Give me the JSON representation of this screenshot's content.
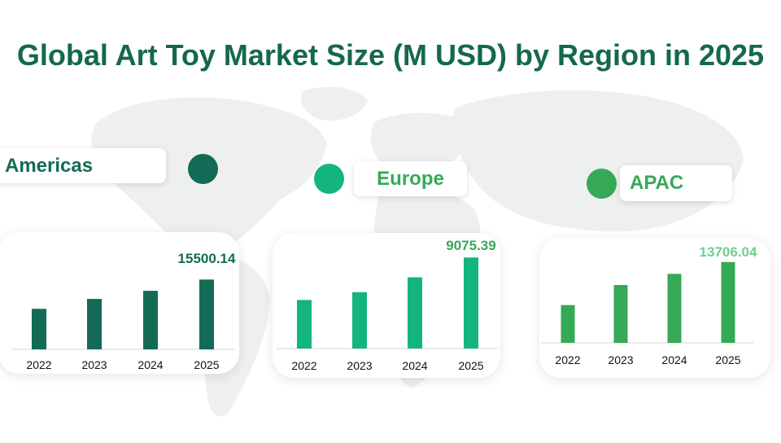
{
  "title": "Global Art Toy Market Size (M USD) by Region in 2025",
  "colors": {
    "title": "#14684e",
    "americas": "#136b55",
    "europe": "#14b47e",
    "apac": "#36a957",
    "apac_label": "#6fcf8e",
    "map": "#eef0ef"
  },
  "chart_data": [
    {
      "type": "bar",
      "region": "Americas",
      "categories": [
        "2022",
        "2023",
        "2024",
        "2025"
      ],
      "values": [
        9000,
        11200,
        13000,
        15500.14
      ],
      "data_labels": [
        "",
        "",
        "",
        "15500.14"
      ],
      "title": "",
      "xlabel": "",
      "ylabel": "",
      "ylim": [
        0,
        17000
      ],
      "grid": false
    },
    {
      "type": "bar",
      "region": "Europe",
      "categories": [
        "2022",
        "2023",
        "2024",
        "2025"
      ],
      "values": [
        4840,
        5620,
        7100,
        9075.39
      ],
      "data_labels": [
        "",
        "",
        "",
        "9075.39"
      ],
      "title": "",
      "xlabel": "",
      "ylabel": "",
      "ylim": [
        0,
        9500
      ],
      "grid": false
    },
    {
      "type": "bar",
      "region": "APAC",
      "categories": [
        "2022",
        "2023",
        "2024",
        "2025"
      ],
      "values": [
        6400,
        9800,
        11700,
        13706.04
      ],
      "data_labels": [
        "",
        "",
        "",
        "13706.04"
      ],
      "title": "",
      "xlabel": "",
      "ylabel": "",
      "ylim": [
        0,
        14500
      ],
      "grid": false
    }
  ]
}
